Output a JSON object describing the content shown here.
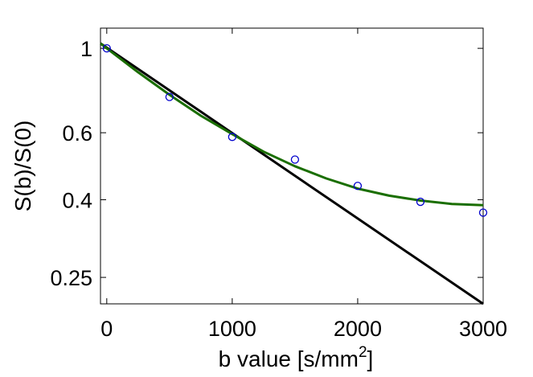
{
  "chart_data": {
    "type": "scatter",
    "title": "",
    "xlabel": "b value [s/mm",
    "xlabel_superscript": "2",
    "xlabel_suffix": "]",
    "ylabel": "S(b)/S(0)",
    "xlim": [
      -50,
      3000
    ],
    "ylim": [
      0.213,
      1.13
    ],
    "yscale": "log",
    "xticks": [
      0,
      1000,
      2000,
      3000
    ],
    "xtick_labels": [
      "0",
      "1000",
      "2000",
      "3000"
    ],
    "yticks": [
      0.25,
      0.4,
      0.6,
      1
    ],
    "ytick_labels": [
      "0.25",
      "0.4",
      "0.6",
      "1"
    ],
    "grid": false,
    "series": [
      {
        "kind": "markers",
        "marker": "circle-open",
        "color": "#0000cc",
        "x": [
          0,
          500,
          1000,
          1500,
          2000,
          2500,
          3000
        ],
        "y": [
          1.0,
          0.745,
          0.585,
          0.51,
          0.435,
          0.395,
          0.37
        ]
      },
      {
        "kind": "line",
        "color": "#000000",
        "x": [
          -50,
          3000
        ],
        "y": [
          1.03,
          0.213
        ]
      },
      {
        "kind": "curve",
        "color": "#1a6e00",
        "x": [
          -50,
          0,
          250,
          500,
          750,
          1000,
          1250,
          1500,
          1750,
          2000,
          2250,
          2500,
          2750,
          3000
        ],
        "y": [
          1.03,
          1.0,
          0.865,
          0.755,
          0.665,
          0.595,
          0.535,
          0.49,
          0.455,
          0.428,
          0.41,
          0.398,
          0.39,
          0.387
        ]
      }
    ]
  }
}
